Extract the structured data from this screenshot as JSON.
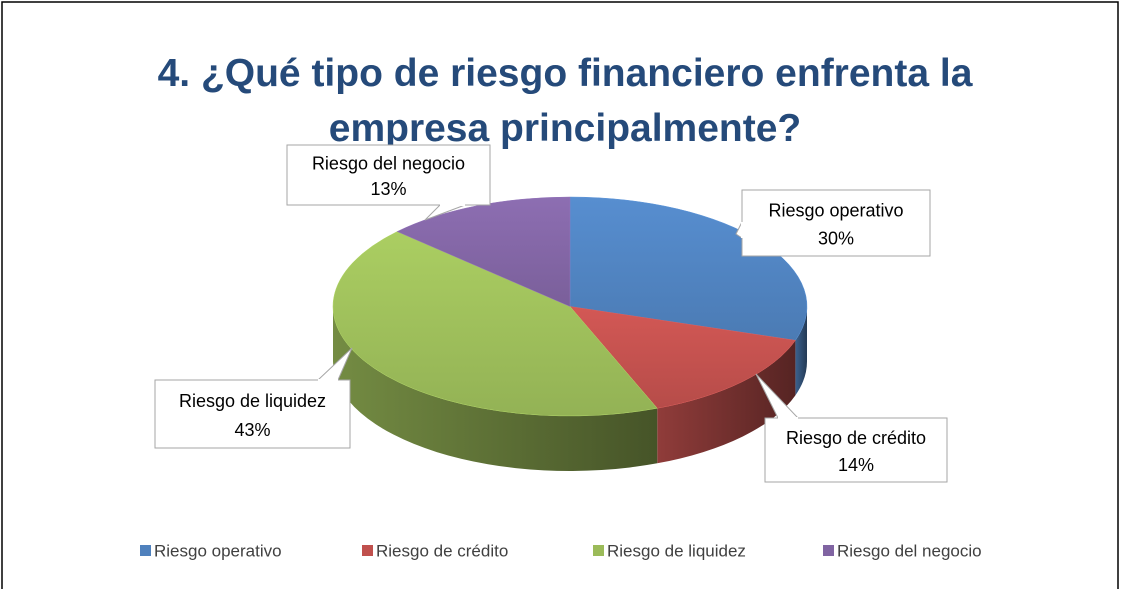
{
  "chart_data": {
    "type": "pie",
    "title": "4. ¿Qué tipo de riesgo financiero enfrenta la empresa principalmente?",
    "categories": [
      "Riesgo operativo",
      "Riesgo de crédito",
      "Riesgo de liquidez",
      "Riesgo del negocio"
    ],
    "values": [
      30,
      14,
      43,
      13
    ],
    "value_labels": [
      "30%",
      "14%",
      "43%",
      "13%"
    ],
    "colors": [
      "#4f81bd",
      "#c0504d",
      "#9bbb59",
      "#8064a2"
    ],
    "legend": "bottom"
  }
}
